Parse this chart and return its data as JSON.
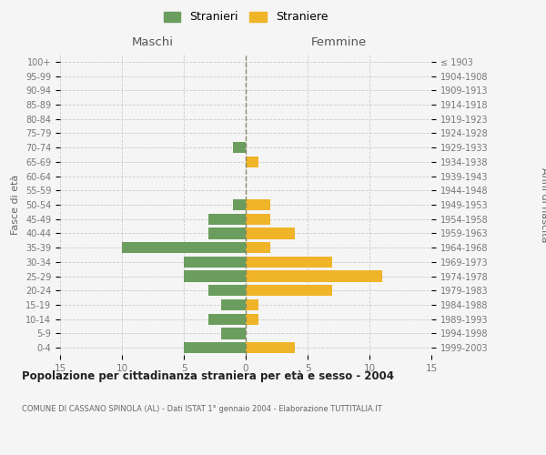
{
  "age_groups": [
    "100+",
    "95-99",
    "90-94",
    "85-89",
    "80-84",
    "75-79",
    "70-74",
    "65-69",
    "60-64",
    "55-59",
    "50-54",
    "45-49",
    "40-44",
    "35-39",
    "30-34",
    "25-29",
    "20-24",
    "15-19",
    "10-14",
    "5-9",
    "0-4"
  ],
  "birth_years": [
    "≤ 1903",
    "1904-1908",
    "1909-1913",
    "1914-1918",
    "1919-1923",
    "1924-1928",
    "1929-1933",
    "1934-1938",
    "1939-1943",
    "1944-1948",
    "1949-1953",
    "1954-1958",
    "1959-1963",
    "1964-1968",
    "1969-1973",
    "1974-1978",
    "1979-1983",
    "1984-1988",
    "1989-1993",
    "1994-1998",
    "1999-2003"
  ],
  "males": [
    0,
    0,
    0,
    0,
    0,
    0,
    1,
    0,
    0,
    0,
    1,
    3,
    3,
    10,
    5,
    5,
    3,
    2,
    3,
    2,
    5
  ],
  "females": [
    0,
    0,
    0,
    0,
    0,
    0,
    0,
    1,
    0,
    0,
    2,
    2,
    4,
    2,
    7,
    11,
    7,
    1,
    1,
    0,
    4
  ],
  "male_color": "#6b9e5e",
  "female_color": "#f0b429",
  "background_color": "#f5f5f5",
  "grid_color": "#cccccc",
  "title": "Popolazione per cittadinanza straniera per età e sesso - 2004",
  "subtitle": "COMUNE DI CASSANO SPINOLA (AL) - Dati ISTAT 1° gennaio 2004 - Elaborazione TUTTITALIA.IT",
  "xlabel_left": "Maschi",
  "xlabel_right": "Femmine",
  "ylabel_left": "Fasce di età",
  "ylabel_right": "Anni di nascita",
  "xlim": 15,
  "legend_stranieri": "Stranieri",
  "legend_straniere": "Straniere"
}
